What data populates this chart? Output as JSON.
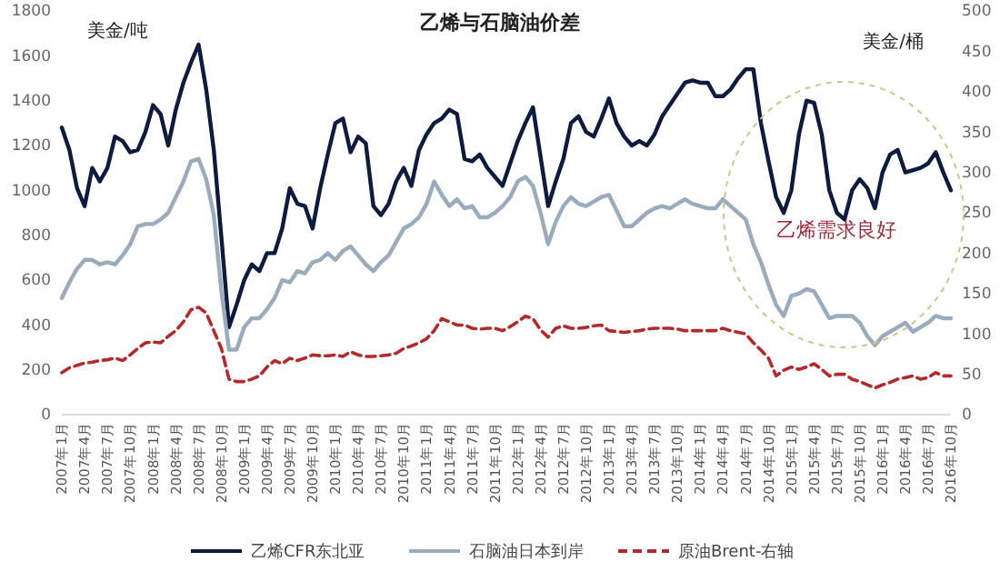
{
  "chart_data": {
    "type": "line",
    "title": "乙烯与石脑油价差",
    "ylabel": "美金/吨",
    "y2label": "美金/桶",
    "annotations": [
      "乙烯需求良好"
    ],
    "categories": [
      "2007年1月",
      null,
      null,
      "2007年4月",
      null,
      null,
      "2007年7月",
      null,
      null,
      "2007年10月",
      null,
      null,
      "2008年1月",
      null,
      null,
      "2008年4月",
      null,
      null,
      "2008年7月",
      null,
      null,
      "2008年10月",
      null,
      null,
      "2009年1月",
      null,
      null,
      "2009年4月",
      null,
      null,
      "2009年7月",
      null,
      null,
      "2009年10月",
      null,
      null,
      "2010年1月",
      null,
      null,
      "2010年4月",
      null,
      null,
      "2010年7月",
      null,
      null,
      "2010年10月",
      null,
      null,
      "2011年1月",
      null,
      null,
      "2011年4月",
      null,
      null,
      "2011年7月",
      null,
      null,
      "2011年10月",
      null,
      null,
      "2012年1月",
      null,
      null,
      "2012年4月",
      null,
      null,
      "2012年7月",
      null,
      null,
      "2012年10月",
      null,
      null,
      "2013年1月",
      null,
      null,
      "2013年4月",
      null,
      null,
      "2013年7月",
      null,
      null,
      "2013年10月",
      null,
      null,
      "2014年1月",
      null,
      null,
      "2014年4月",
      null,
      null,
      "2014年7月",
      null,
      null,
      "2014年10月",
      null,
      null,
      "2015年1月",
      null,
      null,
      "2015年4月",
      null,
      null,
      "2015年7月",
      null,
      null,
      "2015年10月",
      null,
      null,
      "2016年1月",
      null,
      null,
      "2016年4月",
      null,
      null,
      "2016年7月",
      null,
      null,
      "2016年10月"
    ],
    "series": [
      {
        "name": "乙烯CFR东北亚",
        "color": "#0d1b3e",
        "line_style": "solid",
        "values": [
          1280,
          1180,
          1010,
          930,
          1100,
          1040,
          1100,
          1240,
          1220,
          1170,
          1180,
          1260,
          1380,
          1340,
          1200,
          1360,
          1480,
          1570,
          1650,
          1450,
          1180,
          790,
          390,
          490,
          600,
          670,
          640,
          720,
          720,
          830,
          1010,
          940,
          930,
          830,
          1010,
          1160,
          1300,
          1320,
          1170,
          1240,
          1210,
          930,
          890,
          940,
          1040,
          1100,
          1020,
          1180,
          1250,
          1300,
          1320,
          1360,
          1340,
          1140,
          1130,
          1160,
          1100,
          1060,
          1020,
          1120,
          1220,
          1300,
          1370,
          1150,
          930,
          1040,
          1140,
          1300,
          1330,
          1260,
          1240,
          1320,
          1410,
          1300,
          1240,
          1200,
          1220,
          1200,
          1250,
          1330,
          1380,
          1430,
          1480,
          1490,
          1480,
          1480,
          1420,
          1420,
          1450,
          1500,
          1540,
          1540,
          1300,
          1130,
          970,
          900,
          1000,
          1250,
          1400,
          1390,
          1250,
          1000,
          900,
          870,
          1000,
          1050,
          1010,
          920,
          1080,
          1160,
          1180,
          1080,
          1090,
          1100,
          1120,
          1170,
          1080,
          1000
        ]
      },
      {
        "name": "石脑油日本到岸",
        "color": "#9aabbb",
        "line_style": "solid",
        "values": [
          520,
          590,
          650,
          690,
          690,
          670,
          680,
          670,
          710,
          760,
          840,
          850,
          850,
          870,
          900,
          970,
          1040,
          1130,
          1140,
          1050,
          890,
          550,
          290,
          290,
          390,
          430,
          430,
          470,
          520,
          600,
          590,
          640,
          630,
          680,
          690,
          720,
          690,
          730,
          750,
          710,
          670,
          640,
          680,
          710,
          770,
          830,
          850,
          880,
          940,
          1040,
          980,
          930,
          960,
          920,
          930,
          880,
          880,
          900,
          930,
          970,
          1040,
          1060,
          1020,
          900,
          760,
          860,
          930,
          970,
          940,
          930,
          950,
          970,
          980,
          910,
          840,
          840,
          870,
          900,
          920,
          930,
          920,
          940,
          960,
          940,
          930,
          920,
          920,
          960,
          930,
          900,
          870,
          760,
          680,
          580,
          490,
          440,
          530,
          540,
          560,
          550,
          490,
          430,
          440,
          440,
          440,
          410,
          350,
          310,
          350,
          370,
          390,
          410,
          370,
          390,
          410,
          440,
          430,
          430
        ]
      },
      {
        "name": "原油Brent-右轴",
        "color": "#b22a2e",
        "line_style": "dashed",
        "axis": "y2",
        "values": [
          52,
          58,
          61,
          64,
          65,
          67,
          68,
          70,
          67,
          74,
          82,
          89,
          90,
          89,
          97,
          104,
          115,
          130,
          133,
          126,
          104,
          82,
          44,
          41,
          41,
          44,
          48,
          59,
          67,
          63,
          70,
          67,
          70,
          74,
          73,
          73,
          74,
          72,
          78,
          74,
          72,
          72,
          73,
          74,
          76,
          82,
          85,
          89,
          94,
          104,
          119,
          115,
          111,
          111,
          107,
          106,
          107,
          107,
          104,
          109,
          115,
          122,
          119,
          105,
          96,
          107,
          110,
          107,
          107,
          108,
          110,
          111,
          104,
          103,
          102,
          103,
          104,
          106,
          107,
          107,
          107,
          106,
          104,
          104,
          104,
          104,
          104,
          107,
          104,
          102,
          100,
          89,
          80,
          70,
          48,
          55,
          59,
          56,
          59,
          63,
          56,
          48,
          50,
          50,
          44,
          41,
          37,
          33,
          37,
          40,
          44,
          46,
          48,
          44,
          46,
          52,
          48,
          48
        ]
      }
    ],
    "ylim": [
      0,
      1800
    ],
    "yticks": [
      0,
      200,
      400,
      600,
      800,
      1000,
      1200,
      1400,
      1600,
      1800
    ],
    "y2lim": [
      0,
      500
    ],
    "y2ticks": [
      0,
      50,
      100,
      150,
      200,
      250,
      300,
      350,
      400,
      450,
      500
    ],
    "legend": "bottom"
  }
}
